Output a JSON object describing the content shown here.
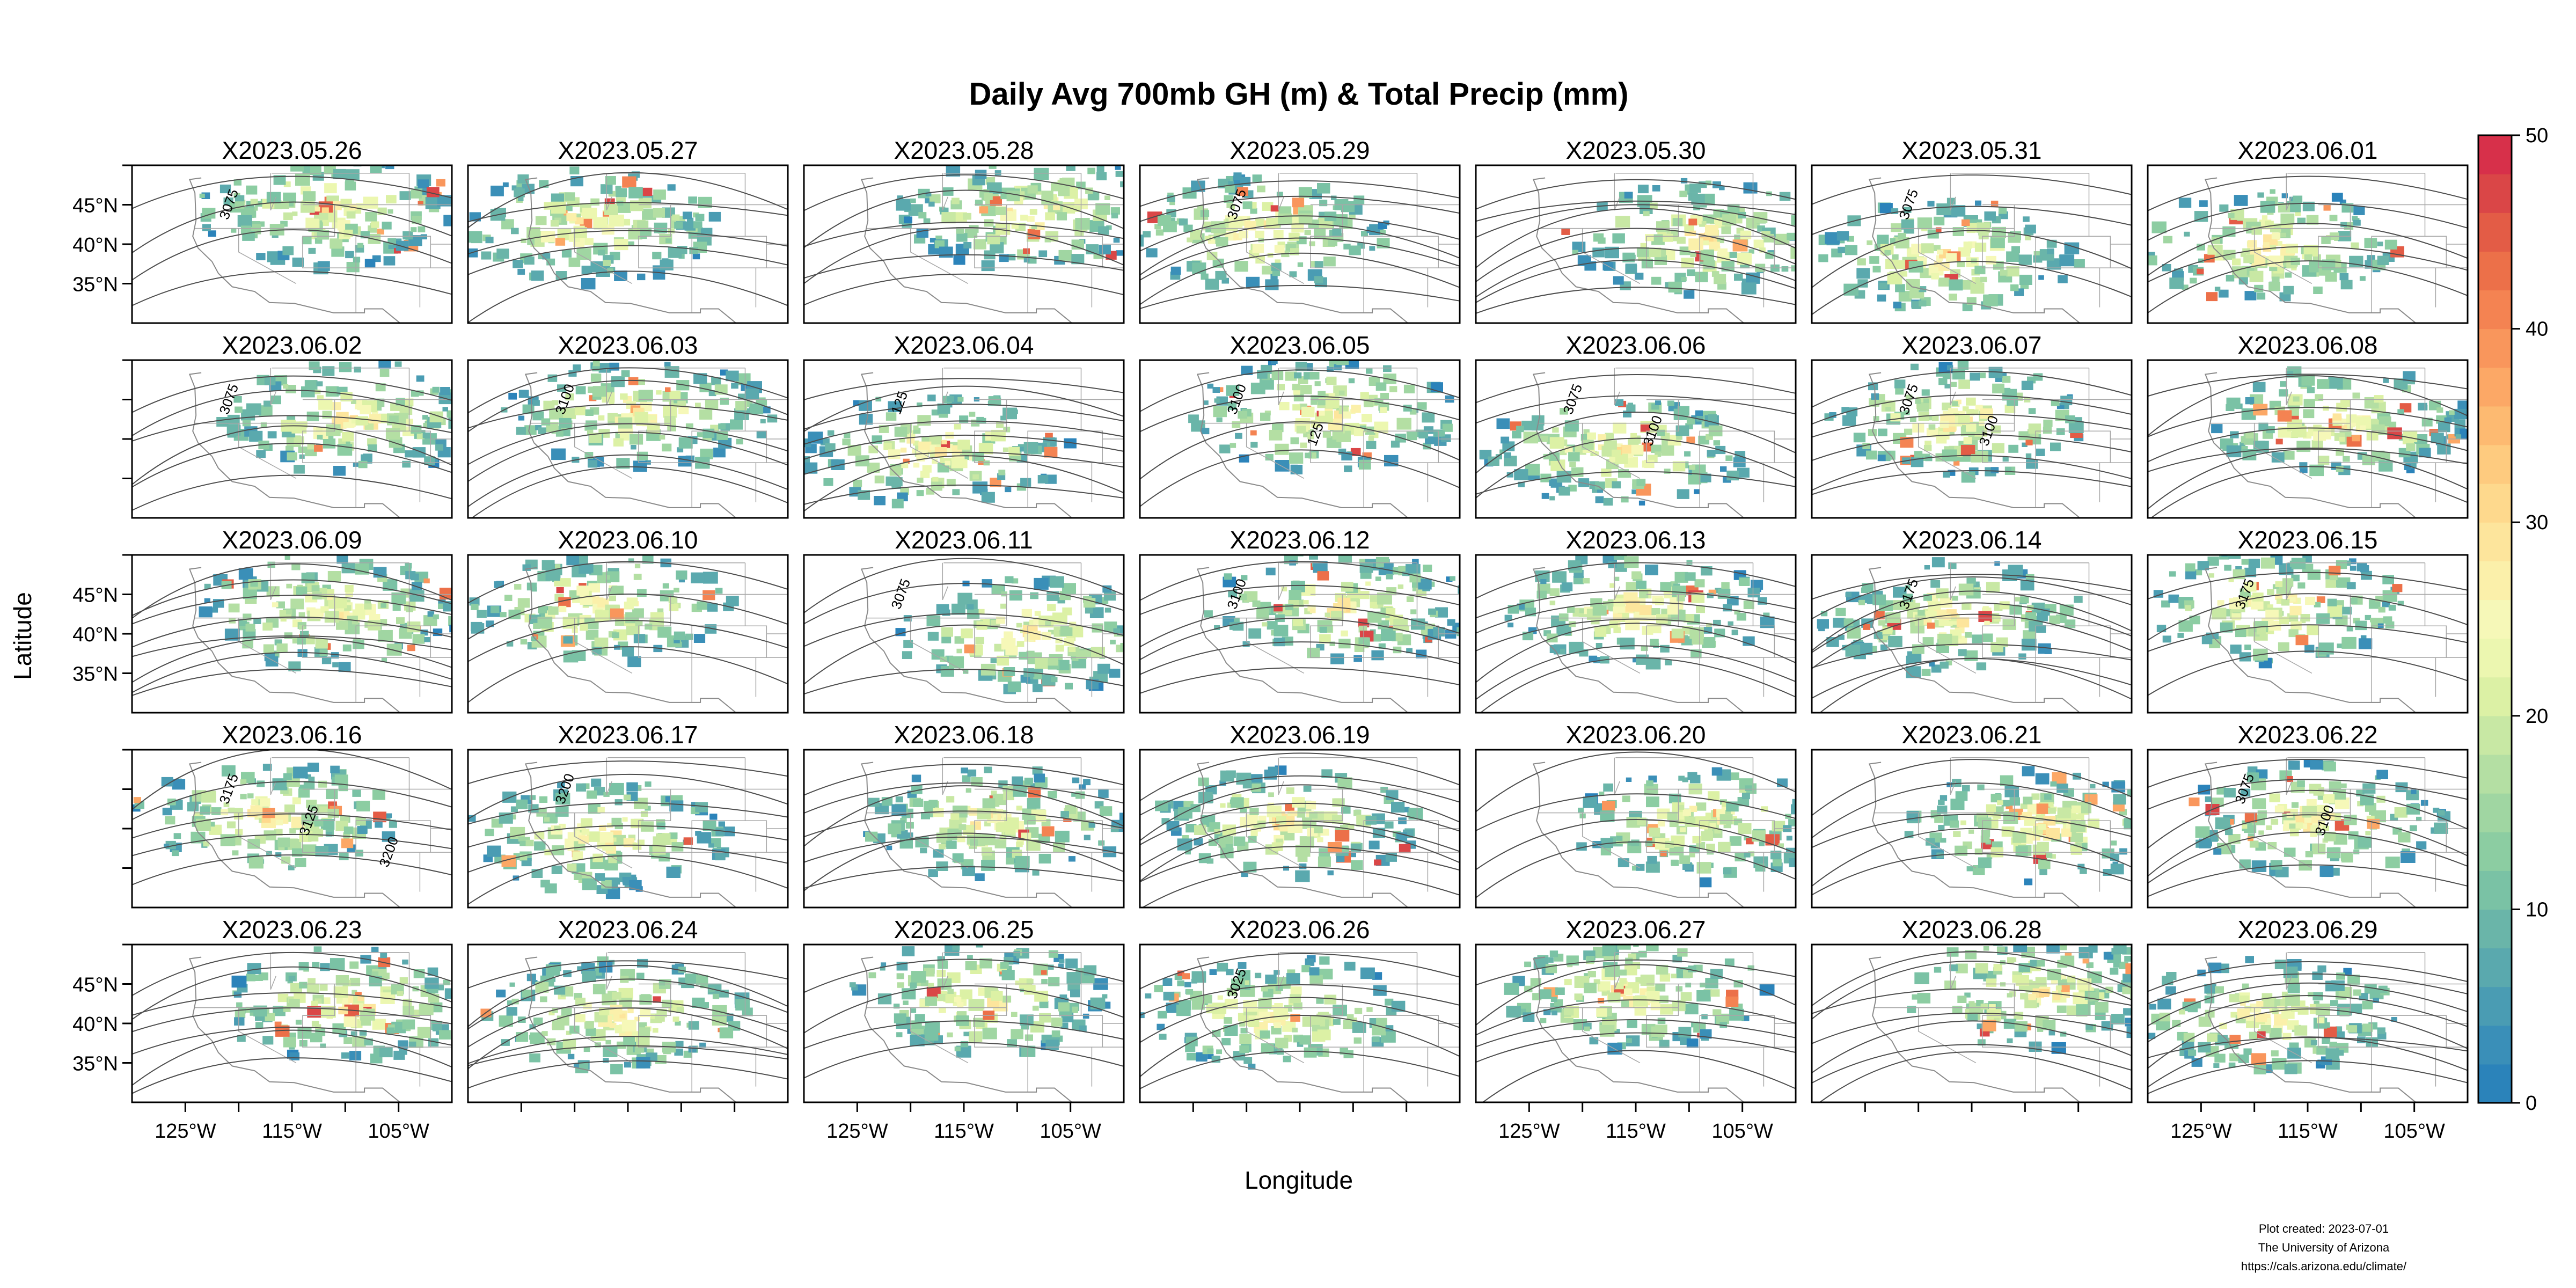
{
  "title": "Daily Avg 700mb GH (m) & Total Precip (mm)",
  "xlabel": "Longitude",
  "ylabel": "Latitude",
  "lon_ticks": [
    "125°W",
    "115°W",
    "105°W"
  ],
  "lat_ticks": [
    "45°N",
    "40°N",
    "35°N"
  ],
  "colorbar": {
    "min": 0,
    "max": 50,
    "ticks": [
      "0",
      "10",
      "20",
      "30",
      "40",
      "50"
    ],
    "colors": [
      "#2b83ba",
      "#3a8fb8",
      "#4a9cb3",
      "#5aa9ae",
      "#6ab5a9",
      "#7ac2a5",
      "#8ccda2",
      "#a0d6a2",
      "#b4dfa3",
      "#c8e8a4",
      "#dcf1a5",
      "#ecf7b0",
      "#f6f8b8",
      "#fbf0aa",
      "#fde59c",
      "#fed98d",
      "#fecb7f",
      "#fdba71",
      "#fca866",
      "#f9965c",
      "#f48352",
      "#ec7049",
      "#e35c46",
      "#da4647",
      "#d7304a"
    ]
  },
  "panels": [
    {
      "label": "X2023.05.26",
      "contours": [
        "3075"
      ]
    },
    {
      "label": "X2023.05.27",
      "contours": []
    },
    {
      "label": "X2023.05.28",
      "contours": []
    },
    {
      "label": "X2023.05.29",
      "contours": [
        "3075"
      ]
    },
    {
      "label": "X2023.05.30",
      "contours": []
    },
    {
      "label": "X2023.05.31",
      "contours": [
        "3075"
      ]
    },
    {
      "label": "X2023.06.01",
      "contours": []
    },
    {
      "label": "X2023.06.02",
      "contours": [
        "3075"
      ]
    },
    {
      "label": "X2023.06.03",
      "contours": [
        "3100"
      ]
    },
    {
      "label": "X2023.06.04",
      "contours": [
        "125"
      ]
    },
    {
      "label": "X2023.06.05",
      "contours": [
        "3100",
        "125"
      ]
    },
    {
      "label": "X2023.06.06",
      "contours": [
        "3075",
        "3100"
      ]
    },
    {
      "label": "X2023.06.07",
      "contours": [
        "3075",
        "3100"
      ]
    },
    {
      "label": "X2023.06.08",
      "contours": []
    },
    {
      "label": "X2023.06.09",
      "contours": []
    },
    {
      "label": "X2023.06.10",
      "contours": []
    },
    {
      "label": "X2023.06.11",
      "contours": [
        "3075"
      ]
    },
    {
      "label": "X2023.06.12",
      "contours": [
        "3100"
      ]
    },
    {
      "label": "X2023.06.13",
      "contours": []
    },
    {
      "label": "X2023.06.14",
      "contours": [
        "3175"
      ]
    },
    {
      "label": "X2023.06.15",
      "contours": [
        "3175"
      ]
    },
    {
      "label": "X2023.06.16",
      "contours": [
        "3175",
        "3125",
        "3200"
      ]
    },
    {
      "label": "X2023.06.17",
      "contours": [
        "3200"
      ]
    },
    {
      "label": "X2023.06.18",
      "contours": []
    },
    {
      "label": "X2023.06.19",
      "contours": []
    },
    {
      "label": "X2023.06.20",
      "contours": []
    },
    {
      "label": "X2023.06.21",
      "contours": []
    },
    {
      "label": "X2023.06.22",
      "contours": [
        "3075",
        "3100"
      ]
    },
    {
      "label": "X2023.06.23",
      "contours": []
    },
    {
      "label": "X2023.06.24",
      "contours": []
    },
    {
      "label": "X2023.06.25",
      "contours": []
    },
    {
      "label": "X2023.06.26",
      "contours": [
        "3025"
      ]
    },
    {
      "label": "X2023.06.27",
      "contours": []
    },
    {
      "label": "X2023.06.28",
      "contours": []
    },
    {
      "label": "X2023.06.29",
      "contours": []
    }
  ],
  "credits": {
    "line1": "Plot created: 2023-07-01",
    "line2": "The University of Arizona",
    "line3": "https://cals.arizona.edu/climate/"
  }
}
